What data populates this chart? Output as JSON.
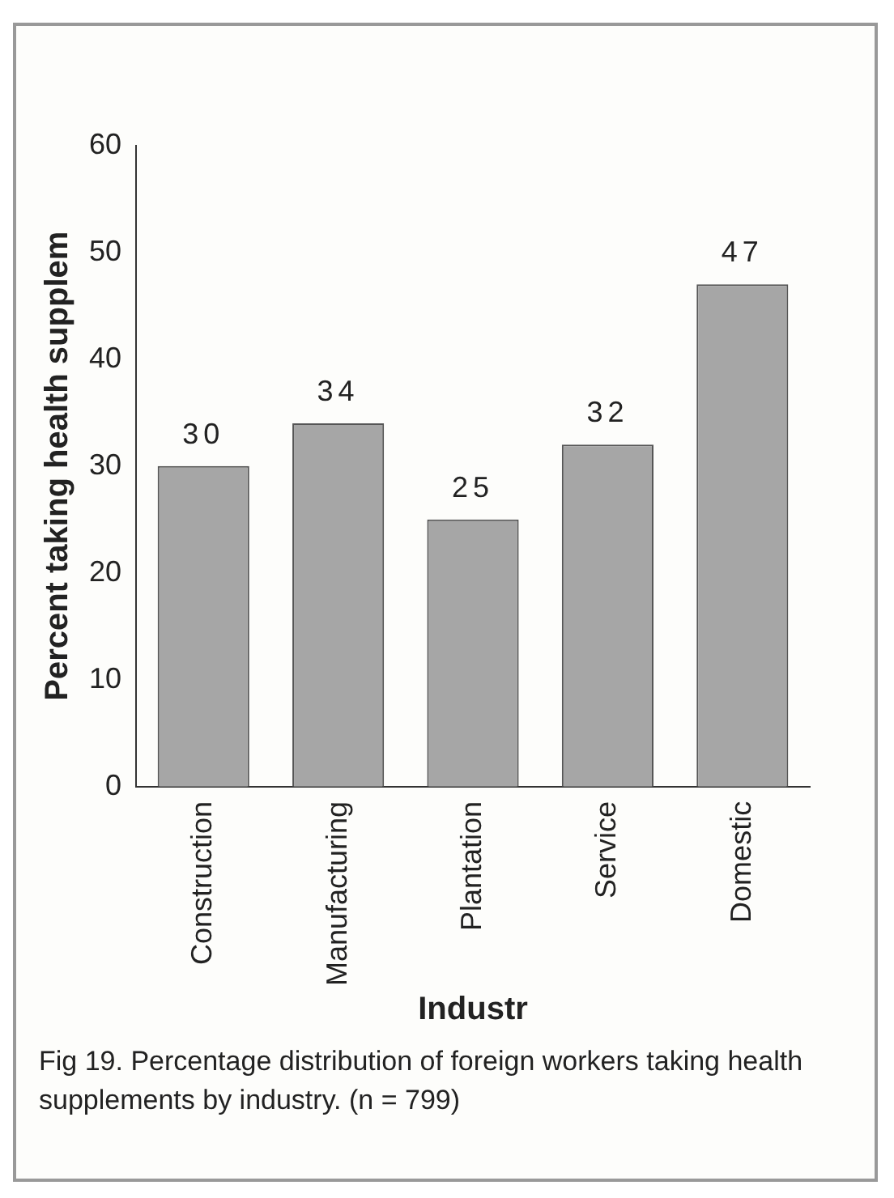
{
  "chart_data": {
    "type": "bar",
    "xlabel": "Industr",
    "ylabel": "Percent taking health supplem",
    "categories": [
      "Construction",
      "Manufacturing",
      "Plantation",
      "Service",
      "Domestic"
    ],
    "values": [
      30,
      34,
      25,
      32,
      47
    ],
    "color": "#a6a6a6",
    "ylim": [
      0,
      60
    ],
    "yticks": [
      0,
      10,
      20,
      30,
      40,
      50,
      60
    ],
    "grid": false,
    "data_labels": true,
    "annotations": [
      "Fig 19. Percentage distribution of foreign workers taking health supplements by industry. (n = 799)"
    ]
  }
}
